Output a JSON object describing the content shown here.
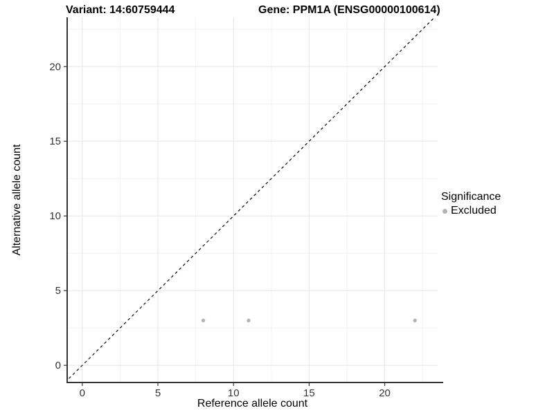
{
  "header": {
    "variant_title": "Variant: 14:60759444",
    "gene_title": "Gene: PPM1A (ENSG00000100614)"
  },
  "chart_data": {
    "type": "scatter",
    "title_left": "Variant: 14:60759444",
    "title_right": "Gene: PPM1A (ENSG00000100614)",
    "xlabel": "Reference allele count",
    "ylabel": "Alternative allele count",
    "xlim": [
      -1,
      23.5
    ],
    "ylim": [
      -1.15,
      23.3
    ],
    "x_ticks": [
      0,
      5,
      10,
      15,
      20
    ],
    "y_ticks": [
      0,
      5,
      10,
      15,
      20
    ],
    "grid": "major+minor",
    "reference_line": {
      "type": "identity y=x",
      "style": "dashed",
      "color": "#000000"
    },
    "series": [
      {
        "name": "Excluded",
        "color": "#b4b4b4",
        "points": [
          {
            "x": 8,
            "y": 3
          },
          {
            "x": 11,
            "y": 3
          },
          {
            "x": 22,
            "y": 3
          }
        ]
      }
    ],
    "legend": {
      "title": "Significance",
      "position": "right",
      "entries": [
        {
          "label": "Excluded",
          "color": "#b4b4b4"
        }
      ]
    }
  },
  "colors": {
    "background": "#ffffff",
    "grid_major": "#e5e5e5",
    "grid_minor": "#f2f2f2",
    "axis_line": "#333333",
    "tick_label": "#333333",
    "point": "#b4b4b4",
    "reference_line": "#000000"
  }
}
